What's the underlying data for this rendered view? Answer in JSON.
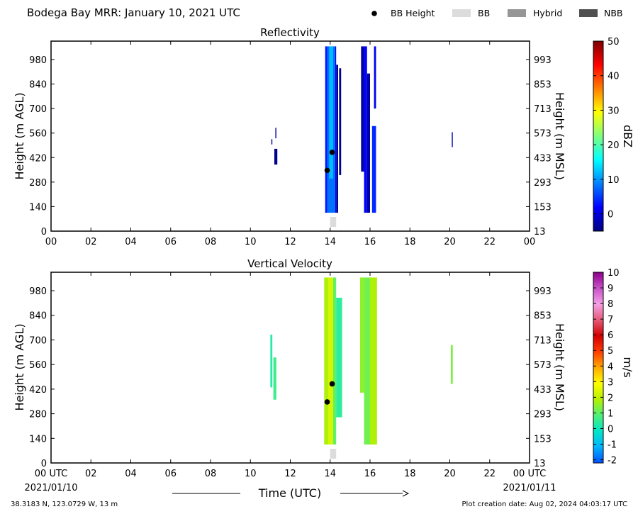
{
  "header": {
    "title": "Bodega Bay MRR:  January 10, 2021 UTC"
  },
  "legend": {
    "placement": "top-right",
    "items": [
      {
        "label": "BB Height",
        "kind": "dot",
        "color": "#000000"
      },
      {
        "label": "BB",
        "kind": "swatch",
        "color": "#dcdcdc"
      },
      {
        "label": "Hybrid",
        "kind": "swatch",
        "color": "#969696"
      },
      {
        "label": "NBB",
        "kind": "swatch",
        "color": "#505050"
      }
    ]
  },
  "xaxis": {
    "label": "Time (UTC)",
    "ticks": [
      "00",
      "02",
      "04",
      "06",
      "08",
      "10",
      "12",
      "14",
      "16",
      "18",
      "20",
      "22",
      "00"
    ],
    "bottom_ticks": [
      "00 UTC",
      "02",
      "04",
      "06",
      "08",
      "10",
      "12",
      "14",
      "16",
      "18",
      "20",
      "22",
      "00 UTC"
    ],
    "start_date": "2021/01/10",
    "end_date": "2021/01/11",
    "range": [
      0,
      24
    ]
  },
  "yaxis": {
    "left_label": "Height (m AGL)",
    "right_label": "Height (m MSL)",
    "left_ticks": [
      "0",
      "140",
      "280",
      "420",
      "560",
      "700",
      "840",
      "980"
    ],
    "right_ticks": [
      "13",
      "153",
      "293",
      "433",
      "573",
      "713",
      "853",
      "993"
    ],
    "range": [
      0,
      1085
    ]
  },
  "footer": {
    "location": "38.3183 N, 123.0729 W, 13 m",
    "created": "Plot creation date: Aug 02, 2024 04:03:17 UTC"
  },
  "chart_data": [
    {
      "type": "heatmap",
      "title": "Reflectivity",
      "xlabel": "",
      "ylabel": "Height (m AGL)",
      "ylabel_right": "Height (m MSL)",
      "xlim": [
        0,
        24
      ],
      "ylim": [
        0,
        1085
      ],
      "colorbar": {
        "label": "dBZ",
        "range": [
          -5,
          50
        ],
        "ticks": [
          "0",
          "10",
          "20",
          "30",
          "40",
          "50"
        ],
        "tick_values": [
          0,
          10,
          20,
          30,
          40,
          50
        ],
        "colors": [
          "#00007f",
          "#0000ff",
          "#007fff",
          "#00ffff",
          "#7fff7f",
          "#ffff00",
          "#ff7f00",
          "#ff0000",
          "#7f0000"
        ]
      },
      "bb_height_points": [
        {
          "x": 13.85,
          "y": 347
        },
        {
          "x": 14.1,
          "y": 450
        }
      ],
      "bb_flag": {
        "type": "BB",
        "x_start": 14.0,
        "x_end": 14.3
      },
      "echoes": [
        {
          "x0": 11.05,
          "x1": 11.1,
          "y0": 495,
          "y1": 525,
          "value": -3
        },
        {
          "x0": 11.2,
          "x1": 11.35,
          "y0": 380,
          "y1": 470,
          "value": -4
        },
        {
          "x0": 11.25,
          "x1": 11.3,
          "y0": 530,
          "y1": 590,
          "value": -3
        },
        {
          "x0": 13.75,
          "x1": 13.85,
          "y0": 105,
          "y1": 1055,
          "value": 3
        },
        {
          "x0": 13.85,
          "x1": 14.25,
          "y0": 105,
          "y1": 1055,
          "value": 8
        },
        {
          "x0": 13.95,
          "x1": 14.15,
          "y0": 300,
          "y1": 1055,
          "value": 12
        },
        {
          "x0": 14.25,
          "x1": 14.3,
          "y0": 105,
          "y1": 1055,
          "value": 1
        },
        {
          "x0": 14.3,
          "x1": 14.4,
          "y0": 105,
          "y1": 950,
          "value": -3
        },
        {
          "x0": 14.45,
          "x1": 14.55,
          "y0": 320,
          "y1": 930,
          "value": -4
        },
        {
          "x0": 15.55,
          "x1": 15.7,
          "y0": 340,
          "y1": 1055,
          "value": -3
        },
        {
          "x0": 15.7,
          "x1": 15.85,
          "y0": 105,
          "y1": 1055,
          "value": 2
        },
        {
          "x0": 15.85,
          "x1": 16.0,
          "y0": 105,
          "y1": 900,
          "value": -3
        },
        {
          "x0": 16.1,
          "x1": 16.3,
          "y0": 105,
          "y1": 600,
          "value": 4
        },
        {
          "x0": 16.2,
          "x1": 16.3,
          "y0": 700,
          "y1": 1055,
          "value": 1
        },
        {
          "x0": 20.1,
          "x1": 20.15,
          "y0": 480,
          "y1": 565,
          "value": -2
        }
      ]
    },
    {
      "type": "heatmap",
      "title": "Vertical Velocity",
      "xlabel": "Time (UTC)",
      "ylabel": "Height (m AGL)",
      "ylabel_right": "Height (m MSL)",
      "xlim": [
        0,
        24
      ],
      "ylim": [
        0,
        1085
      ],
      "colorbar": {
        "label": "m/s",
        "range": [
          -2.2,
          10
        ],
        "ticks": [
          "-2",
          "-1",
          "0",
          "1",
          "2",
          "3",
          "4",
          "5",
          "6",
          "7",
          "8",
          "9",
          "10"
        ],
        "tick_values": [
          -2,
          -1,
          0,
          1,
          2,
          3,
          4,
          5,
          6,
          7,
          8,
          9,
          10
        ],
        "colors": [
          "#0050ff",
          "#00b4ff",
          "#00e6c8",
          "#50f078",
          "#b4f000",
          "#ffff00",
          "#ffaa00",
          "#ff3c00",
          "#d20000",
          "#e65a78",
          "#f5a0e6",
          "#c850c8",
          "#8c008c"
        ]
      },
      "bb_height_points": [
        {
          "x": 13.85,
          "y": 347
        },
        {
          "x": 14.1,
          "y": 450
        }
      ],
      "bb_flag": {
        "type": "BB",
        "x_start": 14.0,
        "x_end": 14.3
      },
      "echoes": [
        {
          "x0": 11.0,
          "x1": 11.1,
          "y0": 430,
          "y1": 730,
          "value": 0.3
        },
        {
          "x0": 11.15,
          "x1": 11.3,
          "y0": 360,
          "y1": 600,
          "value": 0.6
        },
        {
          "x0": 13.7,
          "x1": 13.9,
          "y0": 105,
          "y1": 1055,
          "value": 1.8
        },
        {
          "x0": 13.9,
          "x1": 14.15,
          "y0": 105,
          "y1": 1055,
          "value": 2.3
        },
        {
          "x0": 14.15,
          "x1": 14.3,
          "y0": 105,
          "y1": 1055,
          "value": 1.0
        },
        {
          "x0": 14.3,
          "x1": 14.6,
          "y0": 260,
          "y1": 940,
          "value": 0.4
        },
        {
          "x0": 15.5,
          "x1": 15.7,
          "y0": 400,
          "y1": 1055,
          "value": 1.5
        },
        {
          "x0": 15.7,
          "x1": 16.0,
          "y0": 105,
          "y1": 1055,
          "value": 1.2
        },
        {
          "x0": 16.0,
          "x1": 16.35,
          "y0": 105,
          "y1": 1055,
          "value": 1.8
        },
        {
          "x0": 20.05,
          "x1": 20.15,
          "y0": 450,
          "y1": 670,
          "value": 1.3
        }
      ]
    }
  ]
}
